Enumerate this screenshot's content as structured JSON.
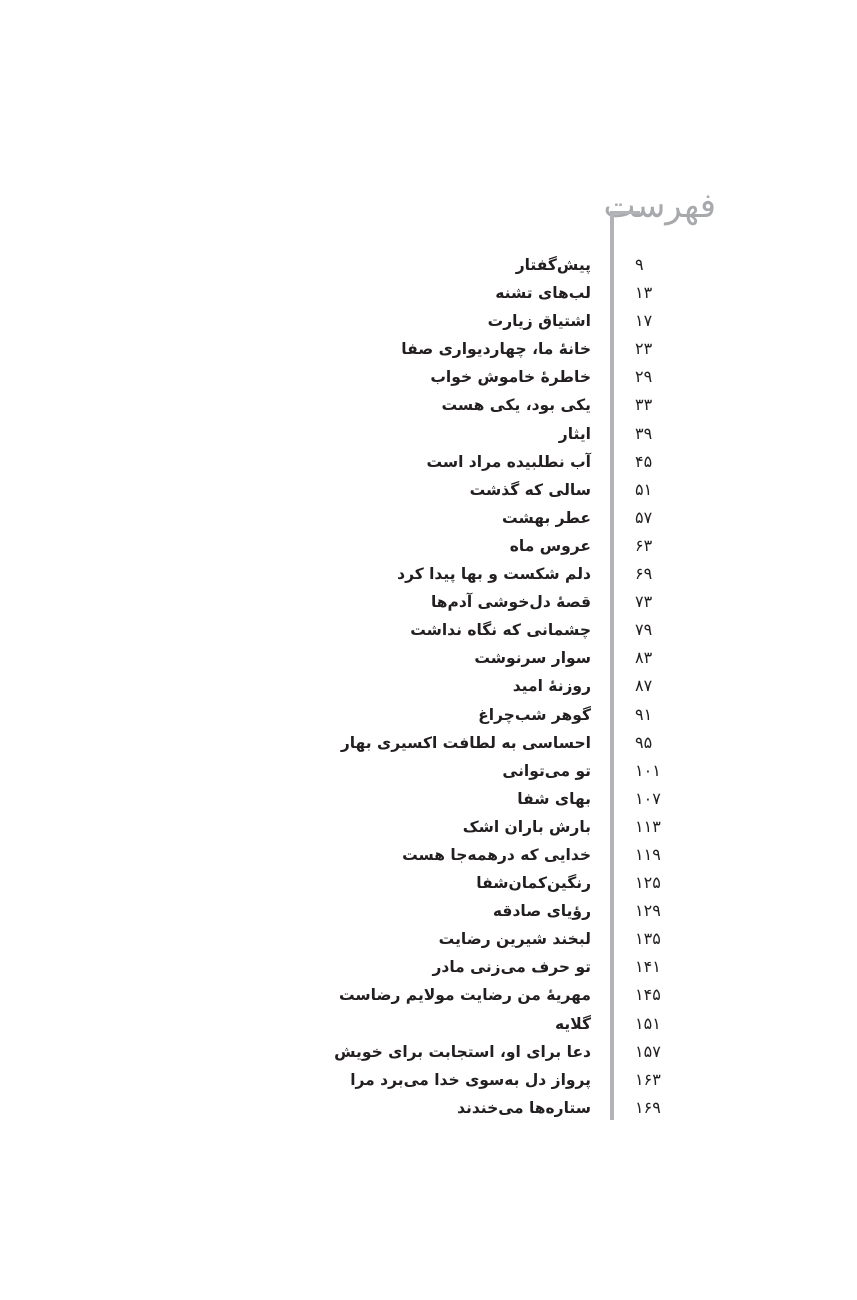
{
  "heading": "فهرست",
  "entries": [
    {
      "title": "پیش‌گفتار",
      "page": "۹"
    },
    {
      "title": "لب‌های تشنه",
      "page": "۱۳"
    },
    {
      "title": "اشتیاق زیارت",
      "page": "۱۷"
    },
    {
      "title": "خانهٔ ما، چهاردیواری صفا",
      "page": "۲۳"
    },
    {
      "title": "خاطرهٔ خاموش خواب",
      "page": "۲۹"
    },
    {
      "title": "یکی بود، یکی هست",
      "page": "۳۳"
    },
    {
      "title": "ایثار",
      "page": "۳۹"
    },
    {
      "title": "آب نطلبیده مراد است",
      "page": "۴۵"
    },
    {
      "title": "سالی که گذشت",
      "page": "۵۱"
    },
    {
      "title": "عطر بهشت",
      "page": "۵۷"
    },
    {
      "title": "عروس ماه",
      "page": "۶۳"
    },
    {
      "title": "دلم شکست و بها پیدا کرد",
      "page": "۶۹"
    },
    {
      "title": "قصهٔ دل‌خوشی آدم‌ها",
      "page": "۷۳"
    },
    {
      "title": "چشمانی که نگاه نداشت",
      "page": "۷۹"
    },
    {
      "title": "سوار سرنوشت",
      "page": "۸۳"
    },
    {
      "title": "روزنهٔ امید",
      "page": "۸۷"
    },
    {
      "title": "گوهر شب‌چراغ",
      "page": "۹۱"
    },
    {
      "title": "احساسی به لطافت اکسیری بهار",
      "page": "۹۵"
    },
    {
      "title": "تو می‌توانی",
      "page": "۱۰۱"
    },
    {
      "title": "بهای شفا",
      "page": "۱۰۷"
    },
    {
      "title": "بارش باران اشک",
      "page": "۱۱۳"
    },
    {
      "title": "خدایی که درهمه‌جا هست",
      "page": "۱۱۹"
    },
    {
      "title": "رنگین‌کمان‌شفا",
      "page": "۱۲۵"
    },
    {
      "title": "رؤیای صادقه",
      "page": "۱۲۹"
    },
    {
      "title": "لبخند شیرین رضایت",
      "page": "۱۳۵"
    },
    {
      "title": "تو حرف می‌زنی مادر",
      "page": "۱۴۱"
    },
    {
      "title": "مهریهٔ من رضایت مولایم رضاست",
      "page": "۱۴۵"
    },
    {
      "title": "گلایه",
      "page": "۱۵۱"
    },
    {
      "title": "دعا برای او، استجابت برای خویش",
      "page": "۱۵۷"
    },
    {
      "title": "پرواز دل به‌سوی خدا می‌برد مرا",
      "page": "۱۶۳"
    },
    {
      "title": "ستاره‌ها می‌خندند",
      "page": "۱۶۹"
    }
  ]
}
